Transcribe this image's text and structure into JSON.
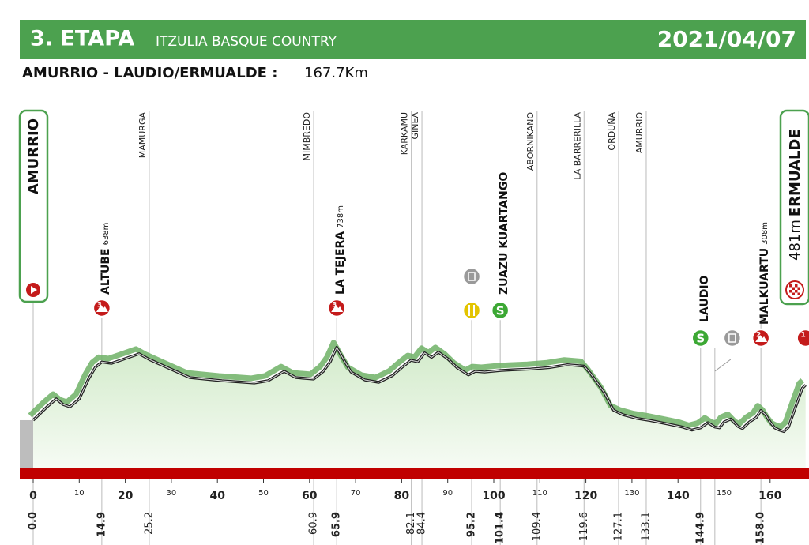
{
  "chart_data": {
    "type": "area",
    "stage": "3. ETAPA",
    "race": "ITZULIA BASQUE COUNTRY",
    "date": "2021/04/07",
    "route": "AMURRIO - LAUDIO/ERMUALDE :",
    "distance": "167.7Km",
    "start": {
      "name": "AMURRIO"
    },
    "finish": {
      "name": "ERMUALDE",
      "altitude": {
        "value": 481,
        "label": "481m"
      }
    },
    "x": [
      0,
      3,
      5,
      6.5,
      8,
      10,
      12,
      13.5,
      14.9,
      17,
      19.5,
      23,
      25.2,
      29,
      34,
      41,
      48,
      51,
      54.5,
      57,
      60.9,
      63,
      64.5,
      65.9,
      67.5,
      69,
      72,
      75,
      78,
      80,
      82,
      83.5,
      85,
      86.5,
      88,
      90,
      92,
      94.5,
      96,
      98,
      101.4,
      104,
      108,
      112,
      116,
      119.6,
      121,
      124,
      126,
      128,
      131,
      134,
      138,
      141,
      143,
      144.9,
      146.5,
      148,
      149,
      150,
      151.5,
      153,
      154,
      155.5,
      157,
      158,
      159,
      160,
      161,
      162,
      163,
      164,
      165.5,
      167,
      167.7
    ],
    "values": [
      242,
      333,
      387,
      349,
      333,
      387,
      522,
      602,
      638,
      629,
      656,
      694,
      656,
      602,
      532,
      511,
      495,
      511,
      575,
      532,
      522,
      575,
      640,
      738,
      650,
      570,
      516,
      500,
      545,
      600,
      650,
      640,
      700,
      670,
      705,
      660,
      600,
      550,
      575,
      570,
      580,
      585,
      590,
      600,
      620,
      610,
      560,
      430,
      310,
      280,
      255,
      240,
      215,
      195,
      175,
      190,
      225,
      195,
      190,
      230,
      250,
      200,
      185,
      230,
      260,
      308,
      280,
      230,
      190,
      175,
      165,
      195,
      330,
      460,
      481
    ],
    "xlim": [
      0,
      167.7
    ],
    "xticks": [
      0,
      10,
      20,
      30,
      40,
      50,
      60,
      70,
      80,
      90,
      100,
      110,
      120,
      130,
      140,
      150,
      160
    ],
    "color": "#4ca14f",
    "waypoints": [
      {
        "kind": "start",
        "km": {
          "value": 0,
          "label": "0.0"
        }
      },
      {
        "kind": "climb",
        "name": "ALTUBE",
        "altitude": {
          "value": 638,
          "label": "638m"
        },
        "category": 3,
        "km": 14.9
      },
      {
        "kind": "town",
        "name": "MAMURGA",
        "km": 25.2
      },
      {
        "kind": "town",
        "name": "MIMBREDO",
        "km": 60.9
      },
      {
        "kind": "climb",
        "name": "LA TEJERA",
        "altitude": {
          "value": 738,
          "label": "738m"
        },
        "category": 3,
        "km": 65.9
      },
      {
        "kind": "town",
        "name": "KARKAMU",
        "km": 82.1
      },
      {
        "kind": "town",
        "name": "GINEA",
        "km": 84.4
      },
      {
        "kind": "feed",
        "km": 95.2
      },
      {
        "kind": "sprint",
        "name": "ZUAZU KUARTANGO",
        "symbol": "S",
        "km": 101.4
      },
      {
        "kind": "town",
        "name": "ABORNIKANO",
        "km": 109.4
      },
      {
        "kind": "town",
        "name": "LA BARRERILLA",
        "km": 119.6
      },
      {
        "kind": "town",
        "name": "ORDUÑA",
        "km": 127.1
      },
      {
        "kind": "town",
        "name": "AMURRIO",
        "km": 133.1
      },
      {
        "kind": "sprint",
        "name": "LAUDIO",
        "symbol": "S",
        "km": 144.9
      },
      {
        "kind": "waste",
        "km": 148
      },
      {
        "kind": "climb",
        "name": "MALKUARTU",
        "altitude": {
          "value": 308,
          "label": "308m"
        },
        "category": 2,
        "km": {
          "value": 158,
          "label": "158.0"
        }
      },
      {
        "kind": "finish",
        "category": 1,
        "km": 167.7
      }
    ]
  }
}
